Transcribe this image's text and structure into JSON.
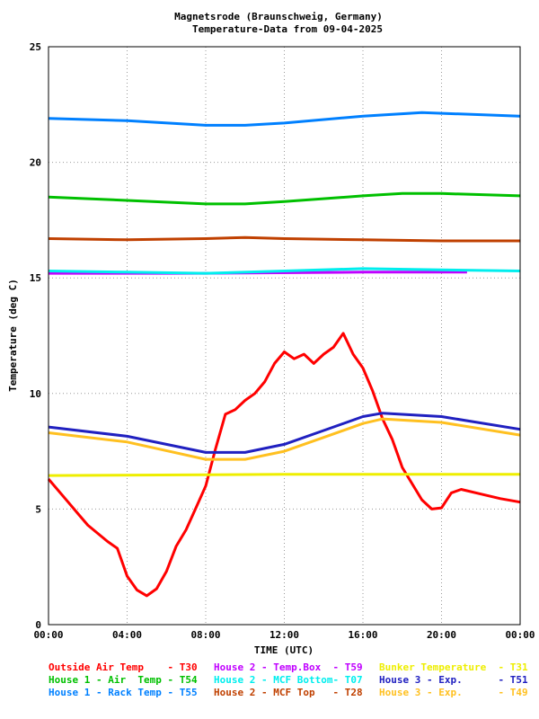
{
  "chart_data": {
    "type": "line",
    "title": "Magnetsrode (Braunschweig, Germany)",
    "subtitle": "Temperature-Data from 09-04-2025",
    "xlabel": "TIME (UTC)",
    "ylabel": "Temperature (deg C)",
    "xlim": [
      0,
      24
    ],
    "ylim": [
      0,
      25
    ],
    "xticks": [
      0,
      4,
      8,
      12,
      16,
      20,
      24
    ],
    "xtick_labels": [
      "00:00",
      "04:00",
      "08:00",
      "12:00",
      "16:00",
      "20:00",
      "00:00"
    ],
    "yticks": [
      0,
      5,
      10,
      15,
      20,
      25
    ],
    "ytick_labels": [
      "0",
      "5",
      "10",
      "15",
      "20",
      "25"
    ],
    "grid": true,
    "series": [
      {
        "name": "Outside Air Temp    - T30",
        "color": "#ff0000",
        "x": [
          0,
          1,
          1.6,
          2,
          3,
          3.5,
          4,
          4.5,
          5,
          5.5,
          6,
          6.5,
          7,
          7.5,
          8,
          8.5,
          9,
          9.5,
          10,
          10.5,
          11,
          11.5,
          12,
          12.5,
          13,
          13.5,
          14,
          14.5,
          15,
          15.5,
          16,
          16.5,
          17,
          17.5,
          18,
          18.5,
          19,
          19.5,
          20,
          20.5,
          21,
          22,
          23,
          24
        ],
        "y": [
          6.3,
          5.3,
          4.7,
          4.3,
          3.6,
          3.3,
          2.1,
          1.5,
          1.25,
          1.55,
          2.3,
          3.4,
          4.1,
          5.05,
          6.0,
          7.6,
          9.1,
          9.3,
          9.7,
          10.0,
          10.5,
          11.3,
          11.8,
          11.5,
          11.7,
          11.3,
          11.7,
          12.0,
          12.6,
          11.7,
          11.1,
          10.1,
          8.9,
          8.0,
          6.8,
          6.1,
          5.4,
          5.0,
          5.05,
          5.7,
          5.85,
          5.65,
          5.45,
          5.3
        ]
      },
      {
        "name": "House 1 - Air  Temp - T54",
        "color": "#00c000",
        "x": [
          0,
          4,
          8,
          10,
          12,
          16,
          18,
          20,
          24
        ],
        "y": [
          18.5,
          18.35,
          18.2,
          18.2,
          18.3,
          18.55,
          18.65,
          18.65,
          18.55
        ]
      },
      {
        "name": "House 1 - Rack Temp - T55",
        "color": "#0080ff",
        "x": [
          0,
          4,
          8,
          10,
          12,
          16,
          19,
          24
        ],
        "y": [
          21.9,
          21.8,
          21.6,
          21.6,
          21.7,
          22.0,
          22.15,
          22.0
        ]
      },
      {
        "name": "House 2 - Temp.Box  - T59",
        "color": "#c000ff",
        "x": [
          0,
          8,
          16,
          21.3
        ],
        "y": [
          15.2,
          15.2,
          15.25,
          15.25
        ]
      },
      {
        "name": "House 2 - MCF Bottom- T07",
        "color": "#00eeee",
        "x": [
          0,
          4,
          8,
          12,
          16,
          20,
          24
        ],
        "y": [
          15.3,
          15.25,
          15.2,
          15.3,
          15.4,
          15.35,
          15.3
        ]
      },
      {
        "name": "House 2 - MCF Top   - T28",
        "color": "#c04000",
        "x": [
          0,
          4,
          8,
          10,
          12,
          16,
          20,
          24
        ],
        "y": [
          16.7,
          16.65,
          16.7,
          16.75,
          16.7,
          16.65,
          16.6,
          16.6
        ]
      },
      {
        "name": "Bunker Temperature  - T31",
        "color": "#eeee00",
        "x": [
          0,
          12,
          24
        ],
        "y": [
          6.45,
          6.5,
          6.5
        ]
      },
      {
        "name": "House 3 - Exp.      - T51",
        "color": "#2020c0",
        "x": [
          0,
          4,
          8,
          10,
          12,
          14,
          16,
          17,
          20,
          24
        ],
        "y": [
          8.55,
          8.15,
          7.45,
          7.45,
          7.8,
          8.4,
          9.0,
          9.15,
          9.0,
          8.45
        ]
      },
      {
        "name": "House 3 - Exp.      - T49",
        "color": "#ffc020",
        "x": [
          0,
          4,
          8,
          10,
          12,
          14,
          16,
          17,
          20,
          24
        ],
        "y": [
          8.3,
          7.9,
          7.15,
          7.15,
          7.5,
          8.1,
          8.7,
          8.9,
          8.75,
          8.2
        ]
      }
    ]
  }
}
